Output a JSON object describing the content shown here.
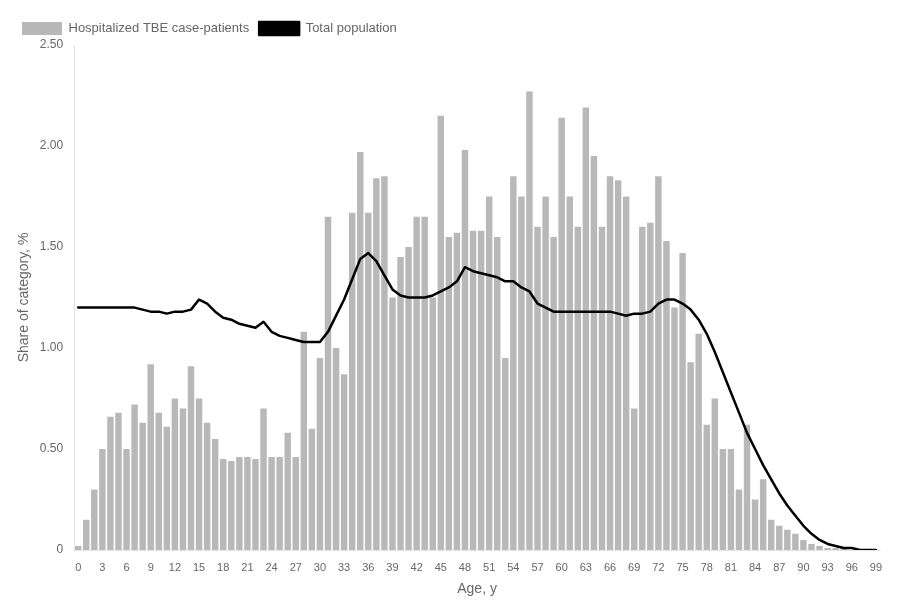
{
  "chart_data": {
    "type": "bar",
    "xlabel": "Age, y",
    "ylabel": "Share of category, %",
    "categories": [
      "0",
      null,
      null,
      "3",
      null,
      null,
      "6",
      null,
      null,
      "9",
      null,
      null,
      "12",
      null,
      null,
      "15",
      null,
      null,
      "18",
      null,
      null,
      "21",
      null,
      null,
      "24",
      null,
      null,
      "27",
      null,
      null,
      "30",
      null,
      null,
      "33",
      null,
      null,
      "36",
      null,
      null,
      "39",
      null,
      null,
      "42",
      null,
      null,
      "45",
      null,
      null,
      "48",
      null,
      null,
      "51",
      null,
      null,
      "54",
      null,
      null,
      "57",
      null,
      null,
      "60",
      null,
      null,
      "63",
      null,
      null,
      "66",
      null,
      null,
      "69",
      null,
      null,
      "72",
      null,
      null,
      "75",
      null,
      null,
      "78",
      null,
      null,
      "81",
      null,
      null,
      "84",
      null,
      null,
      "87",
      null,
      null,
      "90",
      null,
      null,
      "93",
      null,
      null,
      "96",
      null,
      null,
      "99"
    ],
    "series": [
      {
        "name": "Hospitalized TBE case-patients",
        "type": "bar",
        "color": "#b8b8b8",
        "values": [
          0.02,
          0.15,
          0.3,
          0.5,
          0.66,
          0.68,
          0.5,
          0.72,
          0.63,
          0.92,
          0.68,
          0.61,
          0.75,
          0.7,
          0.91,
          0.75,
          0.63,
          0.55,
          0.45,
          0.44,
          0.46,
          0.46,
          0.45,
          0.7,
          0.46,
          0.46,
          0.58,
          0.46,
          1.08,
          0.6,
          0.95,
          1.65,
          1.0,
          0.87,
          1.67,
          1.97,
          1.67,
          1.84,
          1.85,
          1.25,
          1.45,
          1.5,
          1.65,
          1.65,
          1.25,
          2.15,
          1.55,
          1.57,
          1.98,
          1.58,
          1.58,
          1.75,
          1.55,
          0.95,
          1.85,
          1.75,
          2.27,
          1.6,
          1.75,
          1.55,
          2.14,
          1.75,
          1.6,
          2.19,
          1.95,
          1.6,
          1.85,
          1.83,
          1.75,
          0.7,
          1.6,
          1.62,
          1.85,
          1.53,
          1.2,
          1.47,
          0.93,
          1.07,
          0.62,
          0.75,
          0.5,
          0.5,
          0.3,
          0.62,
          0.25,
          0.35,
          0.15,
          0.12,
          0.1,
          0.08,
          0.05,
          0.03,
          0.02,
          0.01,
          0.01,
          0.01,
          0.0,
          0.0,
          0.0,
          0.0
        ]
      },
      {
        "name": "Total population",
        "type": "line",
        "color": "#000000",
        "values": [
          1.2,
          1.2,
          1.2,
          1.2,
          1.2,
          1.2,
          1.2,
          1.2,
          1.19,
          1.18,
          1.18,
          1.17,
          1.18,
          1.18,
          1.19,
          1.24,
          1.22,
          1.18,
          1.15,
          1.14,
          1.12,
          1.11,
          1.1,
          1.13,
          1.08,
          1.06,
          1.05,
          1.04,
          1.03,
          1.03,
          1.03,
          1.08,
          1.16,
          1.24,
          1.34,
          1.44,
          1.47,
          1.43,
          1.36,
          1.29,
          1.26,
          1.25,
          1.25,
          1.25,
          1.26,
          1.28,
          1.3,
          1.33,
          1.4,
          1.38,
          1.37,
          1.36,
          1.35,
          1.33,
          1.33,
          1.3,
          1.28,
          1.22,
          1.2,
          1.18,
          1.18,
          1.18,
          1.18,
          1.18,
          1.18,
          1.18,
          1.18,
          1.17,
          1.16,
          1.17,
          1.17,
          1.18,
          1.22,
          1.24,
          1.24,
          1.22,
          1.19,
          1.14,
          1.07,
          0.98,
          0.88,
          0.78,
          0.68,
          0.58,
          0.5,
          0.42,
          0.35,
          0.28,
          0.22,
          0.17,
          0.12,
          0.08,
          0.05,
          0.03,
          0.02,
          0.01,
          0.01,
          0.0,
          0.0,
          0.0
        ]
      }
    ],
    "ylim": [
      0,
      2.5
    ],
    "yticks": [
      0,
      {
        "value": 0.5,
        "label": "0.50"
      },
      {
        "value": 1,
        "label": "1.00"
      },
      {
        "value": 1.5,
        "label": "1.50"
      },
      {
        "value": 2,
        "label": "2.00"
      },
      {
        "value": 2.5,
        "label": "2.50"
      }
    ],
    "grid": false,
    "legend": "upper left"
  }
}
